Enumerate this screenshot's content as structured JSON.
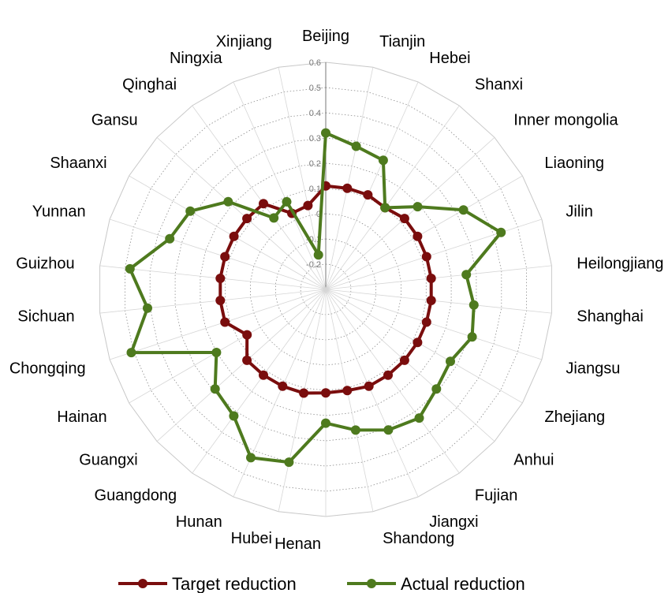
{
  "chart_data": {
    "type": "radar",
    "title": "",
    "categories": [
      "Beijing",
      "Tianjin",
      "Hebei",
      "Shanxi",
      "Inner mongolia",
      "Liaoning",
      "Jilin",
      "Heilongjiang",
      "Shanghai",
      "Jiangsu",
      "Zhejiang",
      "Anhui",
      "Fujian",
      "Jiangxi",
      "Shandong",
      "Henan",
      "Hubei",
      "Hunan",
      "Guangdong",
      "Guangxi",
      "Hainan",
      "Chongqing",
      "Sichuan",
      "Guizhou",
      "Yunnan",
      "Shaanxi",
      "Gansu",
      "Qinghai",
      "Ningxia",
      "Xinjiang"
    ],
    "radial_ticks": [
      "0.6",
      "0.5",
      "0.4",
      "0.3",
      "0.2",
      "0.1",
      "0",
      "-0.1",
      "-0.2"
    ],
    "rlim": [
      -0.3,
      0.6
    ],
    "grid": true,
    "legend_position": "bottom",
    "series": [
      {
        "name": "Target reduction",
        "color": "#7a0d0d",
        "values": [
          0.11,
          0.11,
          0.11,
          0.1,
          0.12,
          0.12,
          0.12,
          0.12,
          0.12,
          0.12,
          0.12,
          0.12,
          0.12,
          0.12,
          0.11,
          0.11,
          0.12,
          0.12,
          0.12,
          0.12,
          0.06,
          0.12,
          0.12,
          0.12,
          0.12,
          0.12,
          0.12,
          0.12,
          0.03,
          0.04
        ]
      },
      {
        "name": "Actual reduction",
        "color": "#4e7a1e",
        "values": [
          0.32,
          0.28,
          0.26,
          0.1,
          0.19,
          0.33,
          0.43,
          0.26,
          0.29,
          0.31,
          0.27,
          0.29,
          0.33,
          0.31,
          0.27,
          0.23,
          0.4,
          0.43,
          0.32,
          0.29,
          0.2,
          0.51,
          0.41,
          0.48,
          0.35,
          0.32,
          0.22,
          0.05,
          0.08,
          -0.16
        ]
      }
    ]
  }
}
